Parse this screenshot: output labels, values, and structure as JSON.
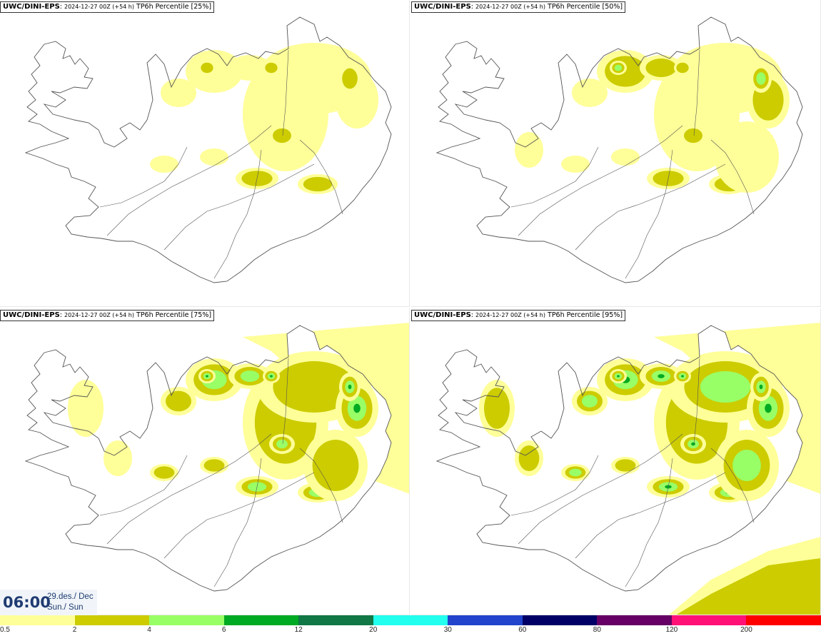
{
  "panels": [
    {
      "model": "UWC/DINI-EPS",
      "run": "2024-12-27 00Z (+54 h)",
      "product": "TP6h Percentile [25%]",
      "level": 0
    },
    {
      "model": "UWC/DINI-EPS",
      "run": "2024-12-27 00Z (+54 h)",
      "product": "TP6h Percentile [50%]",
      "level": 1
    },
    {
      "model": "UWC/DINI-EPS",
      "run": "2024-12-27 00Z (+54 h)",
      "product": "TP6h Percentile [75%]",
      "level": 2
    },
    {
      "model": "UWC/DINI-EPS",
      "run": "2024-12-27 00Z (+54 h)",
      "product": "TP6h Percentile [95%]",
      "level": 3
    }
  ],
  "valid_time": {
    "time": "06:00",
    "date": "29.des./ Dec",
    "day": "Sun./ Sun"
  },
  "legend": {
    "ticks": [
      "0.5",
      "2",
      "4",
      "6",
      "12",
      "20",
      "30",
      "60",
      "80",
      "120",
      "200"
    ],
    "colors": [
      "#ffff99",
      "#cccc00",
      "#99ff66",
      "#00aa22",
      "#117744",
      "#22ffee",
      "#2244cc",
      "#000066",
      "#660066",
      "#ff1177",
      "#ff0000"
    ]
  },
  "map_colors": {
    "land": "#ffffff",
    "outline": "#555555"
  }
}
